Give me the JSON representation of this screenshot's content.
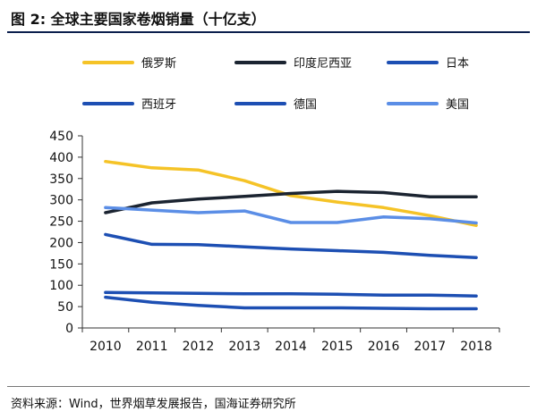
{
  "figure": {
    "title": "图 2:  全球主要国家卷烟销量（十亿支）",
    "source": "资料来源：Wind，世界烟草发展报告，国海证券研究所"
  },
  "chart_data": {
    "type": "line",
    "categories": [
      "2010",
      "2011",
      "2012",
      "2013",
      "2014",
      "2015",
      "2016",
      "2017",
      "2018"
    ],
    "ylim": [
      0,
      450
    ],
    "yticks": [
      0,
      50,
      100,
      150,
      200,
      250,
      300,
      350,
      400,
      450
    ],
    "grid": false,
    "legend_position": "top",
    "series": [
      {
        "name": "俄罗斯",
        "color": "#f5c327",
        "values": [
          390,
          375,
          370,
          345,
          310,
          295,
          282,
          263,
          240
        ]
      },
      {
        "name": "印度尼西亚",
        "color": "#1b2431",
        "values": [
          270,
          293,
          302,
          308,
          315,
          320,
          317,
          307,
          307
        ]
      },
      {
        "name": "日本",
        "color": "#1d4fb3",
        "values": [
          219,
          196,
          195,
          190,
          185,
          181,
          177,
          170,
          165
        ]
      },
      {
        "name": "西班牙",
        "color": "#1d4fb3",
        "values": [
          83,
          82,
          81,
          80,
          80,
          79,
          77,
          77,
          75
        ]
      },
      {
        "name": "德国",
        "color": "#1d4fb3",
        "values": [
          72,
          60,
          53,
          47,
          47,
          47,
          46,
          45,
          45
        ]
      },
      {
        "name": "美国",
        "color": "#5b8ee6",
        "values": [
          282,
          276,
          270,
          274,
          247,
          247,
          260,
          256,
          246
        ]
      }
    ]
  }
}
